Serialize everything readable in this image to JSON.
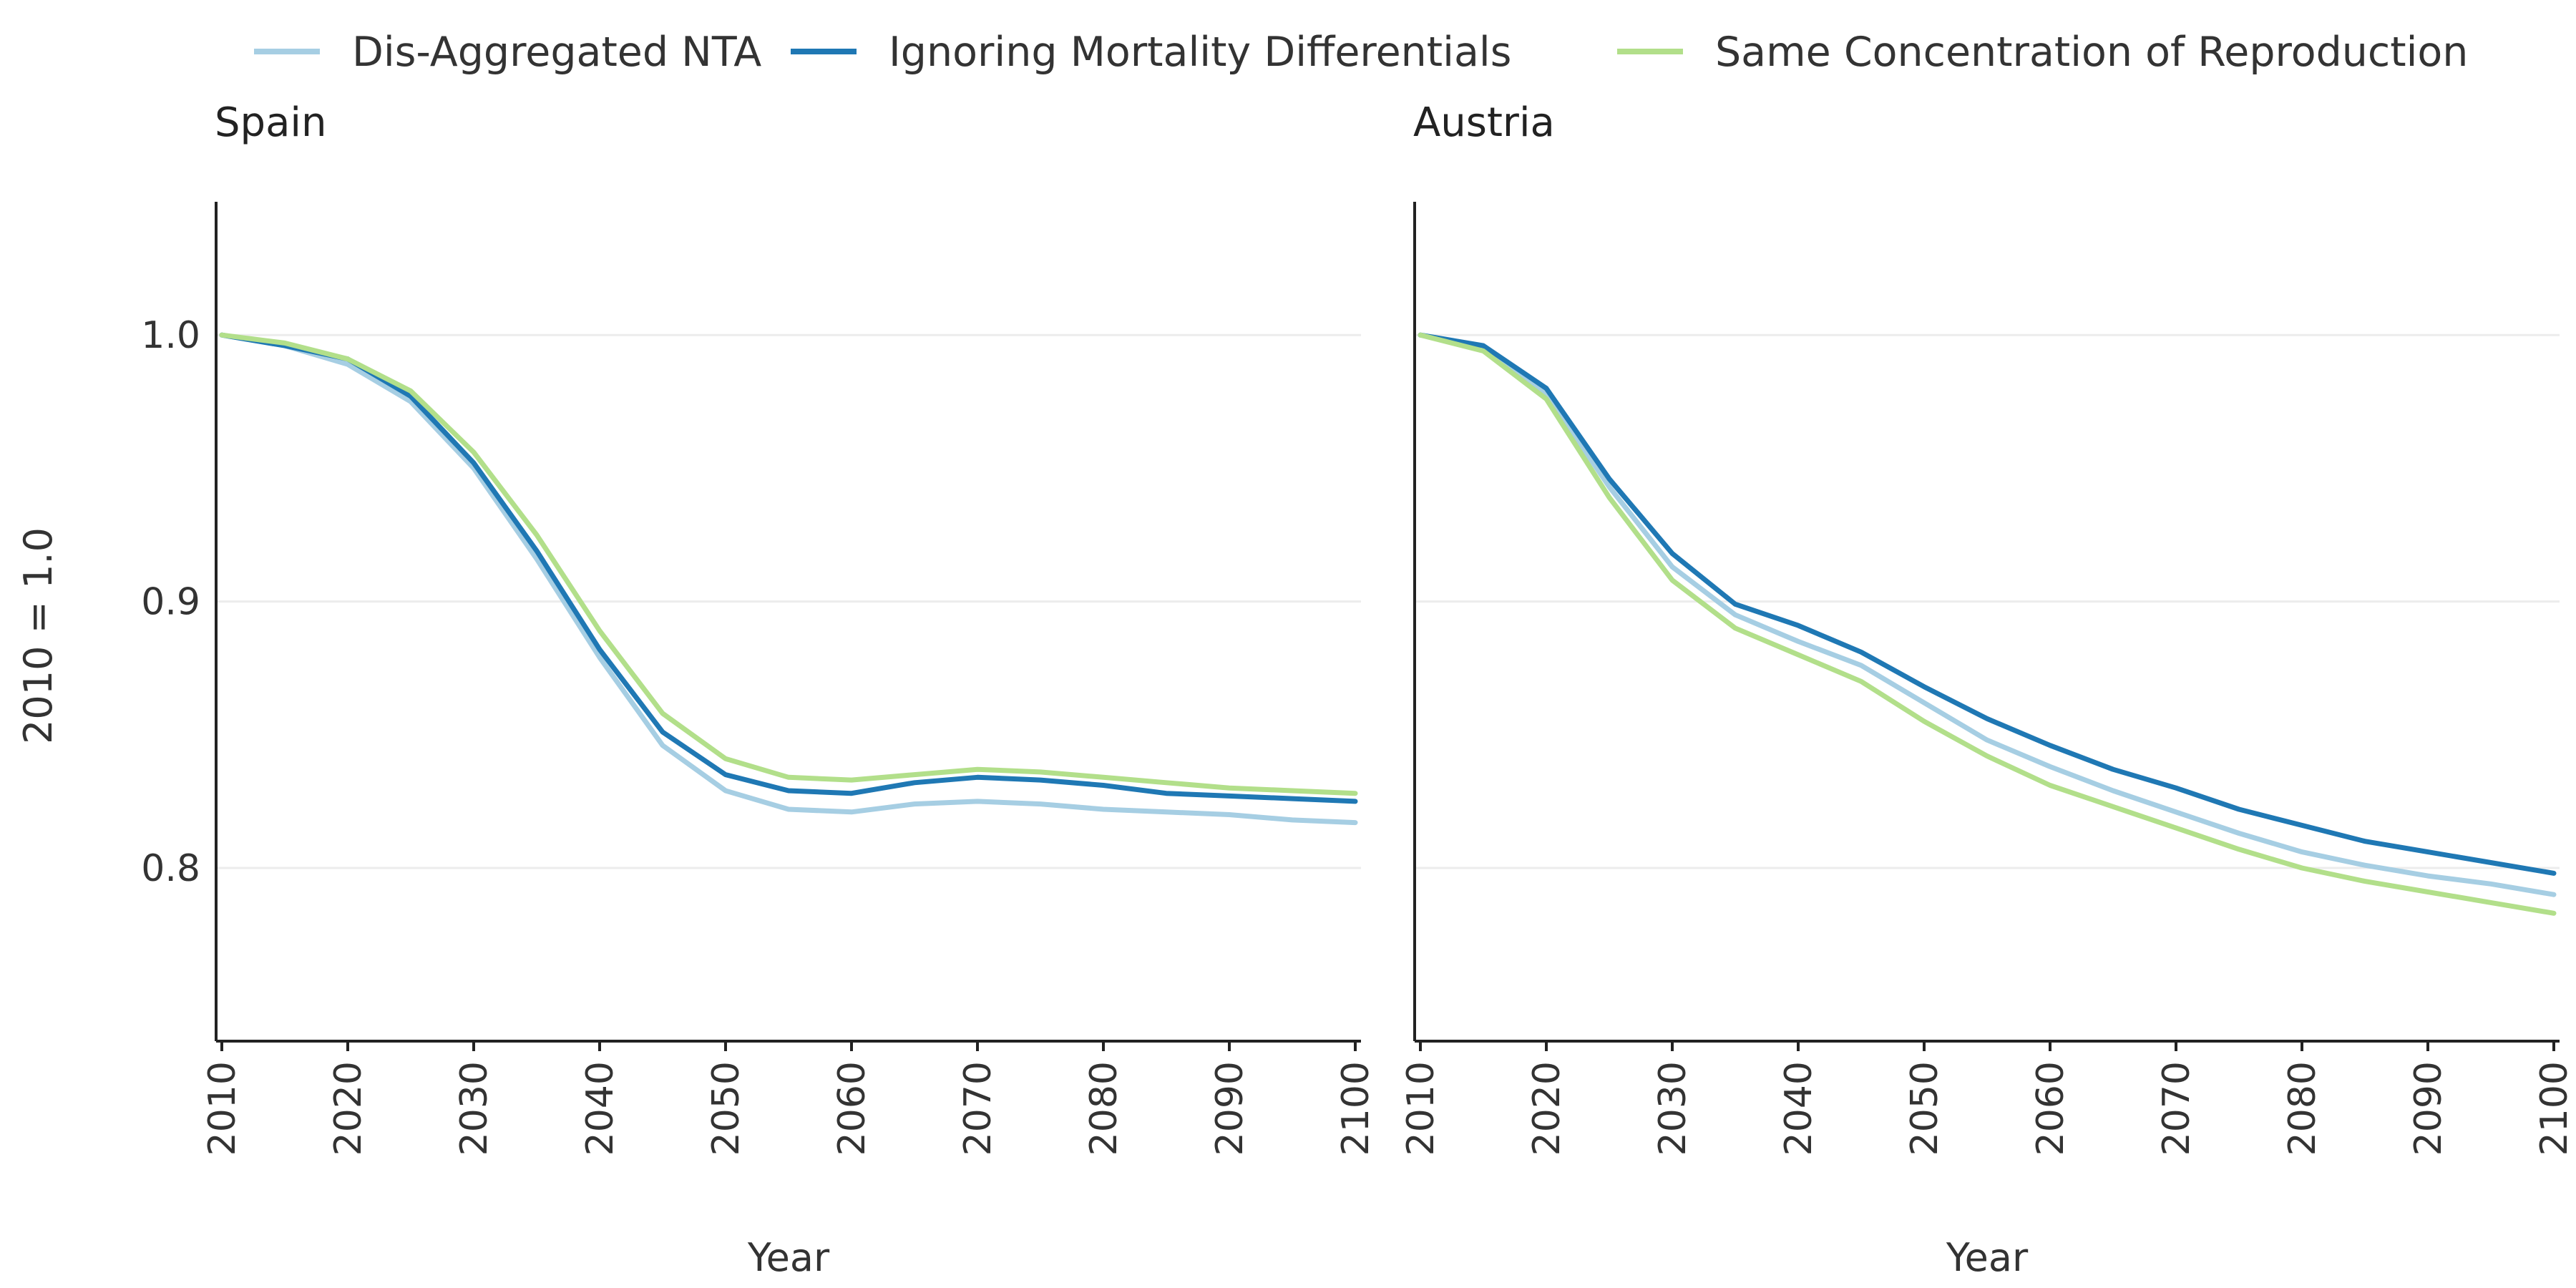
{
  "legend": [
    {
      "label": "Dis-Aggregated NTA",
      "color": "#a6cee3"
    },
    {
      "label": "Ignoring Mortality Differentials",
      "color": "#1f78b4"
    },
    {
      "label": "Same Concentration of Reproduction",
      "color": "#b2df8a"
    }
  ],
  "chart_data": [
    {
      "type": "line",
      "title": "Spain",
      "xlabel": "Year",
      "ylabel": "2010 = 1.0",
      "xlim": [
        2010,
        2100
      ],
      "ylim": [
        0.735,
        1.05
      ],
      "x_ticks": [
        "2010",
        "2020",
        "2030",
        "2040",
        "2050",
        "2060",
        "2070",
        "2080",
        "2090",
        "2100"
      ],
      "y_ticks": [
        "0.8",
        "0.9",
        "1.0"
      ],
      "grid": "horizontal",
      "x": [
        2010,
        2015,
        2020,
        2025,
        2030,
        2035,
        2040,
        2045,
        2050,
        2055,
        2060,
        2065,
        2070,
        2075,
        2080,
        2085,
        2090,
        2095,
        2100
      ],
      "series": [
        {
          "name": "Dis-Aggregated NTA",
          "color": "#a6cee3",
          "values": [
            1.0,
            0.996,
            0.989,
            0.975,
            0.95,
            0.916,
            0.879,
            0.846,
            0.829,
            0.822,
            0.821,
            0.824,
            0.825,
            0.824,
            0.822,
            0.821,
            0.82,
            0.818,
            0.817
          ]
        },
        {
          "name": "Ignoring Mortality Differentials",
          "color": "#1f78b4",
          "values": [
            1.0,
            0.996,
            0.991,
            0.977,
            0.952,
            0.919,
            0.882,
            0.851,
            0.835,
            0.829,
            0.828,
            0.832,
            0.834,
            0.833,
            0.831,
            0.828,
            0.827,
            0.826,
            0.825
          ]
        },
        {
          "name": "Same Concentration of Reproduction",
          "color": "#b2df8a",
          "values": [
            1.0,
            0.997,
            0.991,
            0.979,
            0.956,
            0.925,
            0.889,
            0.858,
            0.841,
            0.834,
            0.833,
            0.835,
            0.837,
            0.836,
            0.834,
            0.832,
            0.83,
            0.829,
            0.828
          ]
        }
      ]
    },
    {
      "type": "line",
      "title": "Austria",
      "xlabel": "Year",
      "ylabel": "",
      "xlim": [
        2010,
        2100
      ],
      "ylim": [
        0.735,
        1.05
      ],
      "x_ticks": [
        "2010",
        "2020",
        "2030",
        "2040",
        "2050",
        "2060",
        "2070",
        "2080",
        "2090",
        "2100"
      ],
      "y_ticks": [],
      "grid": "horizontal",
      "x": [
        2010,
        2015,
        2020,
        2025,
        2030,
        2035,
        2040,
        2045,
        2050,
        2055,
        2060,
        2065,
        2070,
        2075,
        2080,
        2085,
        2090,
        2095,
        2100
      ],
      "series": [
        {
          "name": "Dis-Aggregated NTA",
          "color": "#a6cee3",
          "values": [
            1.0,
            0.995,
            0.978,
            0.943,
            0.913,
            0.895,
            0.885,
            0.876,
            0.862,
            0.848,
            0.838,
            0.829,
            0.821,
            0.813,
            0.806,
            0.801,
            0.797,
            0.794,
            0.79
          ]
        },
        {
          "name": "Ignoring Mortality Differentials",
          "color": "#1f78b4",
          "values": [
            1.0,
            0.996,
            0.98,
            0.946,
            0.918,
            0.899,
            0.891,
            0.881,
            0.868,
            0.856,
            0.846,
            0.837,
            0.83,
            0.822,
            0.816,
            0.81,
            0.806,
            0.802,
            0.798
          ]
        },
        {
          "name": "Same Concentration of Reproduction",
          "color": "#b2df8a",
          "values": [
            1.0,
            0.994,
            0.976,
            0.939,
            0.908,
            0.89,
            0.88,
            0.87,
            0.855,
            0.842,
            0.831,
            0.823,
            0.815,
            0.807,
            0.8,
            0.795,
            0.791,
            0.787,
            0.783
          ]
        }
      ]
    }
  ]
}
